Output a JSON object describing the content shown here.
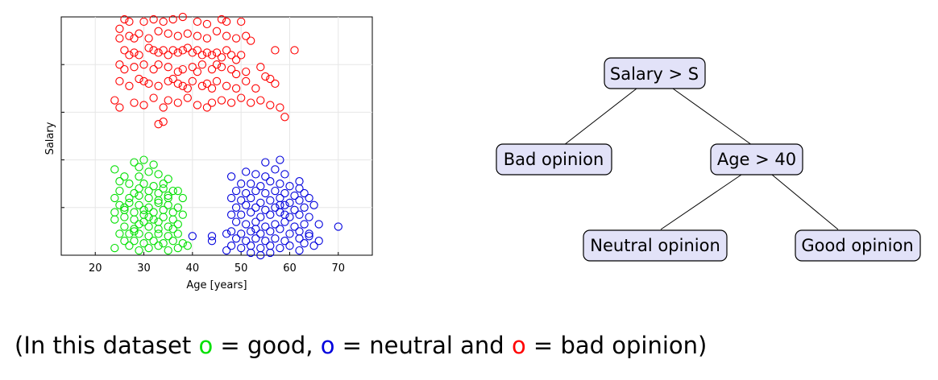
{
  "chart_data": {
    "type": "scatter",
    "xlabel": "Age [years]",
    "ylabel": "Salary",
    "xlim": [
      13,
      77
    ],
    "ylim": [
      0,
      100
    ],
    "xticks": [
      "20",
      "30",
      "40",
      "50",
      "60",
      "70"
    ],
    "yticks": [
      20,
      40,
      60,
      80
    ],
    "grid": true,
    "series": [
      {
        "color": "#ff0000",
        "points": [
          [
            25,
            95
          ],
          [
            26,
            99
          ],
          [
            27,
            98
          ],
          [
            30,
            98
          ],
          [
            32,
            99
          ],
          [
            34,
            98
          ],
          [
            36,
            99
          ],
          [
            38,
            100
          ],
          [
            41,
            98
          ],
          [
            43,
            97
          ],
          [
            46,
            99
          ],
          [
            47,
            98
          ],
          [
            50,
            98
          ],
          [
            25,
            91
          ],
          [
            27,
            92
          ],
          [
            28,
            91
          ],
          [
            29,
            93
          ],
          [
            31,
            91
          ],
          [
            33,
            94
          ],
          [
            35,
            93
          ],
          [
            37,
            92
          ],
          [
            39,
            93
          ],
          [
            41,
            92
          ],
          [
            43,
            91
          ],
          [
            45,
            94
          ],
          [
            47,
            92
          ],
          [
            49,
            91
          ],
          [
            51,
            92
          ],
          [
            52,
            90
          ],
          [
            26,
            86
          ],
          [
            27,
            84
          ],
          [
            28,
            85
          ],
          [
            29,
            84
          ],
          [
            31,
            87
          ],
          [
            32,
            86
          ],
          [
            33,
            85
          ],
          [
            34,
            86
          ],
          [
            35,
            84
          ],
          [
            36,
            86
          ],
          [
            37,
            85
          ],
          [
            38,
            86
          ],
          [
            39,
            87
          ],
          [
            40,
            85
          ],
          [
            41,
            86
          ],
          [
            42,
            84
          ],
          [
            43,
            85
          ],
          [
            44,
            84
          ],
          [
            45,
            85
          ],
          [
            46,
            83
          ],
          [
            47,
            86
          ],
          [
            48,
            84
          ],
          [
            49,
            82
          ],
          [
            50,
            84
          ],
          [
            57,
            86
          ],
          [
            61,
            86
          ],
          [
            25,
            80
          ],
          [
            26,
            78
          ],
          [
            28,
            79
          ],
          [
            30,
            80
          ],
          [
            32,
            78
          ],
          [
            33,
            80
          ],
          [
            35,
            79
          ],
          [
            37,
            77
          ],
          [
            38,
            78
          ],
          [
            40,
            79
          ],
          [
            41,
            77
          ],
          [
            42,
            80
          ],
          [
            44,
            78
          ],
          [
            45,
            80
          ],
          [
            46,
            79
          ],
          [
            48,
            78
          ],
          [
            49,
            76
          ],
          [
            51,
            77
          ],
          [
            54,
            79
          ],
          [
            55,
            75
          ],
          [
            56,
            74
          ],
          [
            57,
            72
          ],
          [
            25,
            73
          ],
          [
            27,
            71
          ],
          [
            29,
            74
          ],
          [
            30,
            73
          ],
          [
            31,
            72
          ],
          [
            33,
            71
          ],
          [
            35,
            73
          ],
          [
            36,
            74
          ],
          [
            37,
            72
          ],
          [
            38,
            71
          ],
          [
            39,
            70
          ],
          [
            40,
            73
          ],
          [
            42,
            71
          ],
          [
            43,
            72
          ],
          [
            44,
            70
          ],
          [
            45,
            73
          ],
          [
            47,
            71
          ],
          [
            49,
            70
          ],
          [
            51,
            73
          ],
          [
            53,
            70
          ],
          [
            24,
            65
          ],
          [
            25,
            62
          ],
          [
            28,
            64
          ],
          [
            30,
            63
          ],
          [
            32,
            66
          ],
          [
            34,
            62
          ],
          [
            35,
            65
          ],
          [
            37,
            64
          ],
          [
            39,
            66
          ],
          [
            41,
            63
          ],
          [
            43,
            62
          ],
          [
            44,
            64
          ],
          [
            46,
            65
          ],
          [
            48,
            64
          ],
          [
            50,
            66
          ],
          [
            52,
            64
          ],
          [
            54,
            65
          ],
          [
            56,
            63
          ],
          [
            58,
            62
          ],
          [
            59,
            58
          ],
          [
            33,
            55
          ],
          [
            34,
            56
          ]
        ]
      },
      {
        "color": "#00e000",
        "points": [
          [
            24,
            36
          ],
          [
            28,
            39
          ],
          [
            30,
            40
          ],
          [
            32,
            38
          ],
          [
            29,
            37
          ],
          [
            31,
            35
          ],
          [
            33,
            34
          ],
          [
            26,
            33
          ],
          [
            29,
            33
          ],
          [
            35,
            32
          ],
          [
            27,
            30
          ],
          [
            30,
            30
          ],
          [
            32,
            29
          ],
          [
            34,
            28
          ],
          [
            36,
            27
          ],
          [
            25,
            27
          ],
          [
            28,
            26
          ],
          [
            31,
            27
          ],
          [
            33,
            26
          ],
          [
            35,
            25
          ],
          [
            37,
            27
          ],
          [
            24,
            24
          ],
          [
            27,
            24
          ],
          [
            29,
            25
          ],
          [
            31,
            24
          ],
          [
            33,
            23
          ],
          [
            35,
            24
          ],
          [
            38,
            24
          ],
          [
            25,
            21
          ],
          [
            27,
            22
          ],
          [
            29,
            21
          ],
          [
            31,
            20
          ],
          [
            33,
            22
          ],
          [
            35,
            21
          ],
          [
            37,
            20
          ],
          [
            24,
            18
          ],
          [
            26,
            19
          ],
          [
            28,
            18
          ],
          [
            30,
            17
          ],
          [
            32,
            18
          ],
          [
            34,
            19
          ],
          [
            36,
            18
          ],
          [
            38,
            17
          ],
          [
            24,
            15
          ],
          [
            26,
            16
          ],
          [
            28,
            15
          ],
          [
            30,
            14
          ],
          [
            32,
            15
          ],
          [
            34,
            16
          ],
          [
            36,
            15
          ],
          [
            26,
            12
          ],
          [
            28,
            11
          ],
          [
            29,
            13
          ],
          [
            31,
            12
          ],
          [
            33,
            11
          ],
          [
            35,
            12
          ],
          [
            37,
            13
          ],
          [
            25,
            9
          ],
          [
            27,
            9
          ],
          [
            29,
            9
          ],
          [
            31,
            8
          ],
          [
            33,
            9
          ],
          [
            35,
            8
          ],
          [
            37,
            9
          ],
          [
            26,
            6
          ],
          [
            28,
            6
          ],
          [
            30,
            5
          ],
          [
            32,
            6
          ],
          [
            34,
            5
          ],
          [
            36,
            6
          ],
          [
            38,
            5
          ],
          [
            24,
            3
          ],
          [
            27,
            4
          ],
          [
            29,
            2
          ],
          [
            31,
            3
          ],
          [
            33,
            4
          ],
          [
            35,
            2
          ],
          [
            37,
            3
          ],
          [
            39,
            4
          ],
          [
            25,
            31
          ],
          [
            29,
            28
          ],
          [
            34,
            30
          ],
          [
            26,
            20
          ],
          [
            30,
            19
          ],
          [
            33,
            14
          ],
          [
            28,
            10
          ],
          [
            31,
            16
          ],
          [
            36,
            11
          ]
        ]
      },
      {
        "color": "#0000dd",
        "points": [
          [
            58,
            40
          ],
          [
            55,
            39
          ],
          [
            62,
            31
          ],
          [
            51,
            35
          ],
          [
            53,
            34
          ],
          [
            55,
            33
          ],
          [
            57,
            36
          ],
          [
            59,
            34
          ],
          [
            48,
            33
          ],
          [
            50,
            30
          ],
          [
            52,
            30
          ],
          [
            54,
            29
          ],
          [
            56,
            31
          ],
          [
            58,
            30
          ],
          [
            60,
            29
          ],
          [
            62,
            28
          ],
          [
            49,
            27
          ],
          [
            51,
            26
          ],
          [
            53,
            27
          ],
          [
            55,
            26
          ],
          [
            57,
            27
          ],
          [
            59,
            26
          ],
          [
            61,
            25
          ],
          [
            63,
            26
          ],
          [
            48,
            24
          ],
          [
            50,
            23
          ],
          [
            52,
            24
          ],
          [
            54,
            22
          ],
          [
            56,
            23
          ],
          [
            58,
            24
          ],
          [
            60,
            22
          ],
          [
            62,
            23
          ],
          [
            64,
            24
          ],
          [
            49,
            20
          ],
          [
            51,
            21
          ],
          [
            53,
            20
          ],
          [
            55,
            19
          ],
          [
            57,
            20
          ],
          [
            59,
            21
          ],
          [
            61,
            19
          ],
          [
            63,
            20
          ],
          [
            65,
            21
          ],
          [
            48,
            17
          ],
          [
            50,
            17
          ],
          [
            52,
            18
          ],
          [
            54,
            16
          ],
          [
            56,
            17
          ],
          [
            58,
            18
          ],
          [
            60,
            16
          ],
          [
            62,
            17
          ],
          [
            64,
            16
          ],
          [
            49,
            14
          ],
          [
            51,
            13
          ],
          [
            53,
            14
          ],
          [
            55,
            12
          ],
          [
            57,
            13
          ],
          [
            59,
            14
          ],
          [
            61,
            12
          ],
          [
            63,
            13
          ],
          [
            66,
            13
          ],
          [
            48,
            10
          ],
          [
            50,
            9
          ],
          [
            52,
            10
          ],
          [
            54,
            9
          ],
          [
            56,
            10
          ],
          [
            58,
            11
          ],
          [
            60,
            9
          ],
          [
            62,
            10
          ],
          [
            64,
            9
          ],
          [
            49,
            7
          ],
          [
            51,
            6
          ],
          [
            53,
            7
          ],
          [
            55,
            6
          ],
          [
            57,
            7
          ],
          [
            59,
            6
          ],
          [
            62,
            7
          ],
          [
            66,
            6
          ],
          [
            48,
            4
          ],
          [
            50,
            3
          ],
          [
            52,
            4
          ],
          [
            54,
            3
          ],
          [
            56,
            4
          ],
          [
            58,
            3
          ],
          [
            60,
            4
          ],
          [
            63,
            5
          ],
          [
            52,
            1
          ],
          [
            54,
            0
          ],
          [
            56,
            1
          ],
          [
            44,
            8
          ],
          [
            44,
            6
          ],
          [
            47,
            9
          ],
          [
            40,
            8
          ],
          [
            62,
            2
          ],
          [
            65,
            4
          ],
          [
            70,
            12
          ],
          [
            47,
            2
          ],
          [
            64,
            8
          ],
          [
            58,
            21
          ],
          [
            53,
            11
          ],
          [
            59,
            17
          ]
        ]
      }
    ]
  },
  "tree": {
    "root": "Salary > S",
    "left": "Bad opinion",
    "right": "Age > 40",
    "right_left": "Neutral opinion",
    "right_right": "Good opinion"
  },
  "caption": {
    "open": "(In this dataset ",
    "sym": "o",
    "eq": " = ",
    "good": "good, ",
    "neutral": "neutral and ",
    "bad": "bad opinion)",
    "colors": {
      "good": "#00e000",
      "neutral": "#0000dd",
      "bad": "#ff0000"
    }
  }
}
